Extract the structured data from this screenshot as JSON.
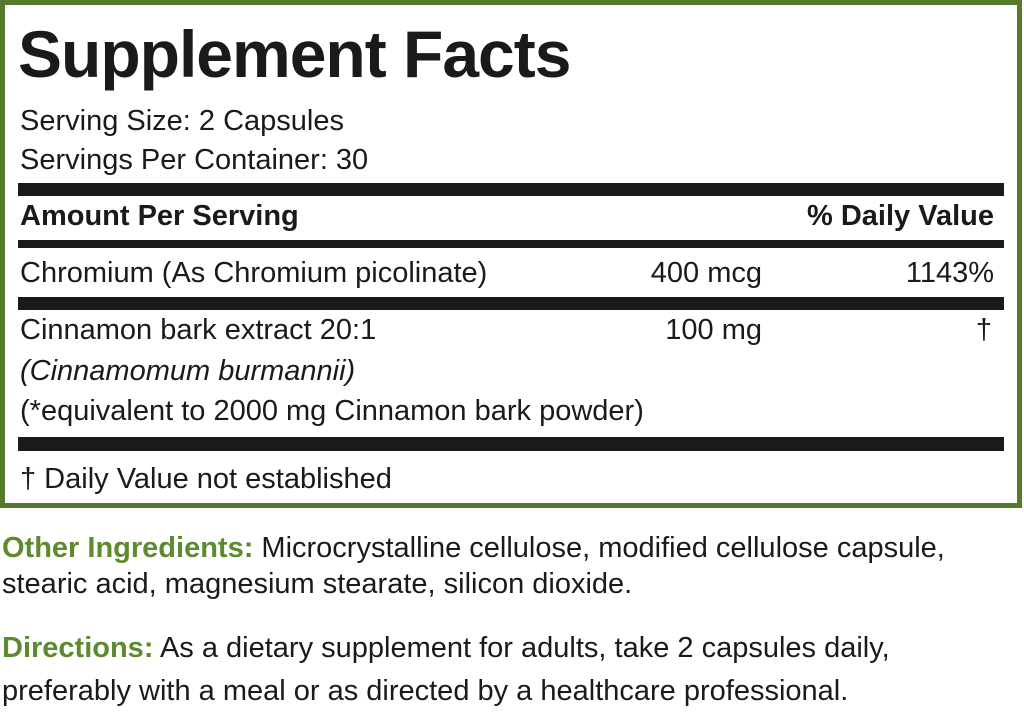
{
  "panel": {
    "title": "Supplement Facts",
    "serving_size": "Serving Size: 2 Capsules",
    "servings_per_container": "Servings Per Container: 30",
    "header": {
      "amount": "Amount Per Serving",
      "daily_value": "% Daily Value"
    },
    "rows": [
      {
        "name": "Chromium (As Chromium picolinate)",
        "amount": "400 mcg",
        "daily_value": "1143%"
      },
      {
        "name": "Cinnamon bark extract 20:1",
        "source": "(Cinnamomum burmannii)",
        "note": "(*equivalent to 2000 mg Cinnamon bark powder)",
        "amount": "100 mg",
        "daily_value": "†"
      }
    ],
    "footnote": "† Daily Value not established"
  },
  "other_ingredients": {
    "label": "Other Ingredients:",
    "text": "Microcrystalline cellulose, modified cellulose capsule, stearic acid, magnesium stearate, silicon dioxide."
  },
  "directions": {
    "label": "Directions:",
    "text": "As a dietary supplement for adults, take 2 capsules daily, preferably with a meal or as directed by a healthcare professional."
  }
}
